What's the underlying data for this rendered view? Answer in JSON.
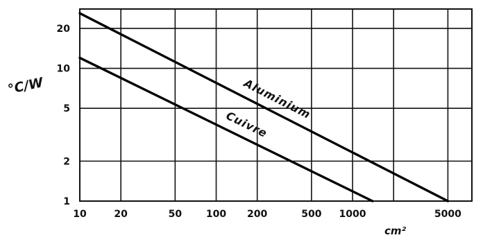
{
  "chart_data": {
    "type": "line",
    "xscale": "log",
    "yscale": "log",
    "xlim": [
      10,
      7500
    ],
    "ylim": [
      1,
      28
    ],
    "grid": true,
    "xticks": [
      10,
      20,
      50,
      100,
      200,
      500,
      1000,
      5000
    ],
    "xtick_labels": [
      "10",
      "20",
      "50",
      "100",
      "200",
      "500",
      "1000",
      "5000"
    ],
    "yticks": [
      1,
      2,
      5,
      10,
      20
    ],
    "ytick_labels": [
      "1",
      "2",
      "5",
      "10",
      "20"
    ],
    "x_gridlines": [
      10,
      20,
      50,
      100,
      200,
      500,
      1000,
      2000,
      5000
    ],
    "xlabel": "cm²",
    "ylabel": "°C/W",
    "series": [
      {
        "name": "Aluminium",
        "x": [
          10,
          5000
        ],
        "y": [
          26,
          1
        ]
      },
      {
        "name": "Cuivre",
        "x": [
          10,
          1400
        ],
        "y": [
          12,
          1
        ]
      }
    ]
  }
}
